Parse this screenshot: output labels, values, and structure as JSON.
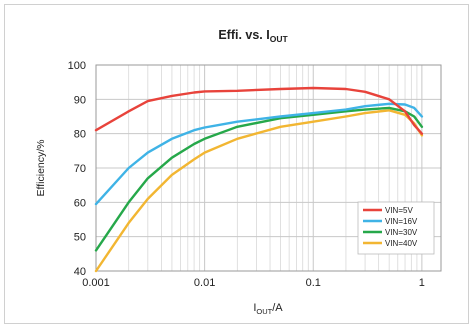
{
  "chart_data": {
    "type": "line",
    "title": "Effi. vs. IOUT",
    "title_main": "Effi. vs. I",
    "title_sub": "OUT",
    "xlabel_main": "I",
    "xlabel_sub": "OUT",
    "xlabel_tail": "/A",
    "ylabel": "Efficiency/%",
    "xscale": "log",
    "xlim": [
      0.001,
      1.5
    ],
    "ylim": [
      40,
      100
    ],
    "grid": true,
    "legend_position": "bottom-right",
    "x_ticks": [
      "0.001",
      "0.01",
      "0.1",
      "1"
    ],
    "x_tick_values": [
      0.001,
      0.01,
      0.1,
      1
    ],
    "y_ticks": [
      "40",
      "50",
      "60",
      "70",
      "80",
      "90",
      "100"
    ],
    "y_tick_values": [
      40,
      50,
      60,
      70,
      80,
      90,
      100
    ],
    "series": [
      {
        "name": "VIN=5V",
        "color": "#e8433b",
        "points": [
          [
            0.001,
            81
          ],
          [
            0.002,
            86.5
          ],
          [
            0.003,
            89.5
          ],
          [
            0.005,
            91
          ],
          [
            0.008,
            92
          ],
          [
            0.01,
            92.3
          ],
          [
            0.02,
            92.5
          ],
          [
            0.05,
            93
          ],
          [
            0.1,
            93.3
          ],
          [
            0.2,
            93
          ],
          [
            0.3,
            92.2
          ],
          [
            0.5,
            90
          ],
          [
            0.7,
            86.5
          ],
          [
            0.85,
            82.5
          ],
          [
            1.0,
            80
          ]
        ]
      },
      {
        "name": "VIN=16V",
        "color": "#3fb3e6",
        "points": [
          [
            0.001,
            59.5
          ],
          [
            0.002,
            70
          ],
          [
            0.003,
            74.5
          ],
          [
            0.005,
            78.5
          ],
          [
            0.008,
            81
          ],
          [
            0.01,
            81.8
          ],
          [
            0.02,
            83.5
          ],
          [
            0.05,
            85
          ],
          [
            0.1,
            86
          ],
          [
            0.2,
            87
          ],
          [
            0.3,
            88
          ],
          [
            0.5,
            88.7
          ],
          [
            0.7,
            88.5
          ],
          [
            0.85,
            87.5
          ],
          [
            1.0,
            85
          ]
        ]
      },
      {
        "name": "VIN=30V",
        "color": "#26a84a",
        "points": [
          [
            0.001,
            46
          ],
          [
            0.002,
            60
          ],
          [
            0.003,
            67
          ],
          [
            0.005,
            73
          ],
          [
            0.008,
            77
          ],
          [
            0.01,
            78.5
          ],
          [
            0.02,
            82
          ],
          [
            0.05,
            84.5
          ],
          [
            0.1,
            85.5
          ],
          [
            0.2,
            86.5
          ],
          [
            0.3,
            87
          ],
          [
            0.5,
            87.5
          ],
          [
            0.7,
            86.5
          ],
          [
            0.85,
            85
          ],
          [
            1.0,
            82
          ]
        ]
      },
      {
        "name": "VIN=40V",
        "color": "#f2b632",
        "points": [
          [
            0.001,
            40
          ],
          [
            0.002,
            54
          ],
          [
            0.003,
            61
          ],
          [
            0.005,
            68
          ],
          [
            0.008,
            72.5
          ],
          [
            0.01,
            74.5
          ],
          [
            0.02,
            78.5
          ],
          [
            0.05,
            82
          ],
          [
            0.1,
            83.5
          ],
          [
            0.2,
            85
          ],
          [
            0.3,
            86
          ],
          [
            0.5,
            86.8
          ],
          [
            0.7,
            85.5
          ],
          [
            0.85,
            83
          ],
          [
            1.0,
            79.5
          ]
        ]
      }
    ]
  }
}
